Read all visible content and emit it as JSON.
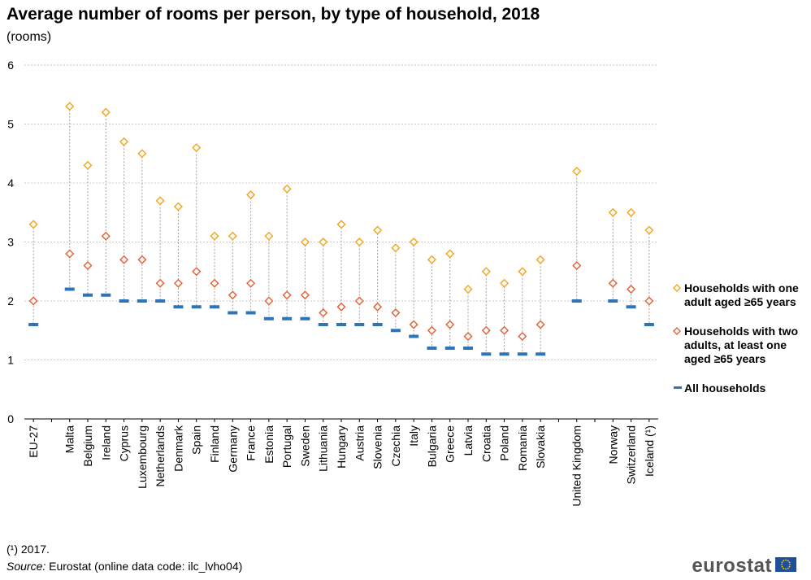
{
  "title": "Average number of rooms per person, by type of household, 2018",
  "subtitle": "(rooms)",
  "footnote": "(¹) 2017.",
  "source": {
    "label": "Source:",
    "text": "Eurostat (online data code: ilc_lvho04)"
  },
  "logo": {
    "text": "eurostat"
  },
  "colors": {
    "one_adult": "#f5a623",
    "two_adults": "#e3643a",
    "all": "#2e75b6",
    "grid": "#c8c8c8",
    "dropline": "#a0a0a0"
  },
  "chart_data": {
    "type": "scatter",
    "title": "Average number of rooms per person, by type of household, 2018",
    "subtitle": "(rooms)",
    "ylim": [
      0,
      6
    ],
    "yticks": [
      0,
      1,
      2,
      3,
      4,
      5,
      6
    ],
    "grid": true,
    "legend_position": "right",
    "categories": [
      "EU-27",
      "",
      "Malta",
      "Belgium",
      "Ireland",
      "Cyprus",
      "Luxembourg",
      "Netherlands",
      "Denmark",
      "Spain",
      "Finland",
      "Germany",
      "France",
      "Estonia",
      "Portugal",
      "Sweden",
      "Lithuania",
      "Hungary",
      "Austria",
      "Slovenia",
      "Czechia",
      "Italy",
      "Bulgaria",
      "Greece",
      "Latvia",
      "Croatia",
      "Poland",
      "Romania",
      "Slovakia",
      "",
      "United Kingdom",
      "",
      "Norway",
      "Switzerland",
      "Iceland (¹)"
    ],
    "series": [
      {
        "name": "Households with one adult aged ≥65 years",
        "marker": "diamond",
        "values": [
          3.3,
          null,
          5.3,
          4.3,
          5.2,
          4.7,
          4.5,
          3.7,
          3.6,
          4.6,
          3.1,
          3.1,
          3.8,
          3.1,
          3.9,
          3.0,
          3.0,
          3.3,
          3.0,
          3.2,
          2.9,
          3.0,
          2.7,
          2.8,
          2.2,
          2.5,
          2.3,
          2.5,
          2.7,
          null,
          4.2,
          null,
          3.5,
          3.5,
          3.2
        ]
      },
      {
        "name": "Households with two adults, at least one aged ≥65 years",
        "marker": "diamond",
        "values": [
          2.0,
          null,
          2.8,
          2.6,
          3.1,
          2.7,
          2.7,
          2.3,
          2.3,
          2.5,
          2.3,
          2.1,
          2.3,
          2.0,
          2.1,
          2.1,
          1.8,
          1.9,
          2.0,
          1.9,
          1.8,
          1.6,
          1.5,
          1.6,
          1.4,
          1.5,
          1.5,
          1.4,
          1.6,
          null,
          2.6,
          null,
          2.3,
          2.2,
          2.0
        ]
      },
      {
        "name": "All households",
        "marker": "dash",
        "values": [
          1.6,
          null,
          2.2,
          2.1,
          2.1,
          2.0,
          2.0,
          2.0,
          1.9,
          1.9,
          1.9,
          1.8,
          1.8,
          1.7,
          1.7,
          1.7,
          1.6,
          1.6,
          1.6,
          1.6,
          1.5,
          1.4,
          1.2,
          1.2,
          1.2,
          1.1,
          1.1,
          1.1,
          1.1,
          null,
          2.0,
          null,
          2.0,
          1.9,
          1.6
        ]
      }
    ]
  },
  "legend": [
    {
      "label": "Households with one adult aged ≥65 years"
    },
    {
      "label": "Households with two adults, at least one aged ≥65 years"
    },
    {
      "label": "All households"
    }
  ]
}
